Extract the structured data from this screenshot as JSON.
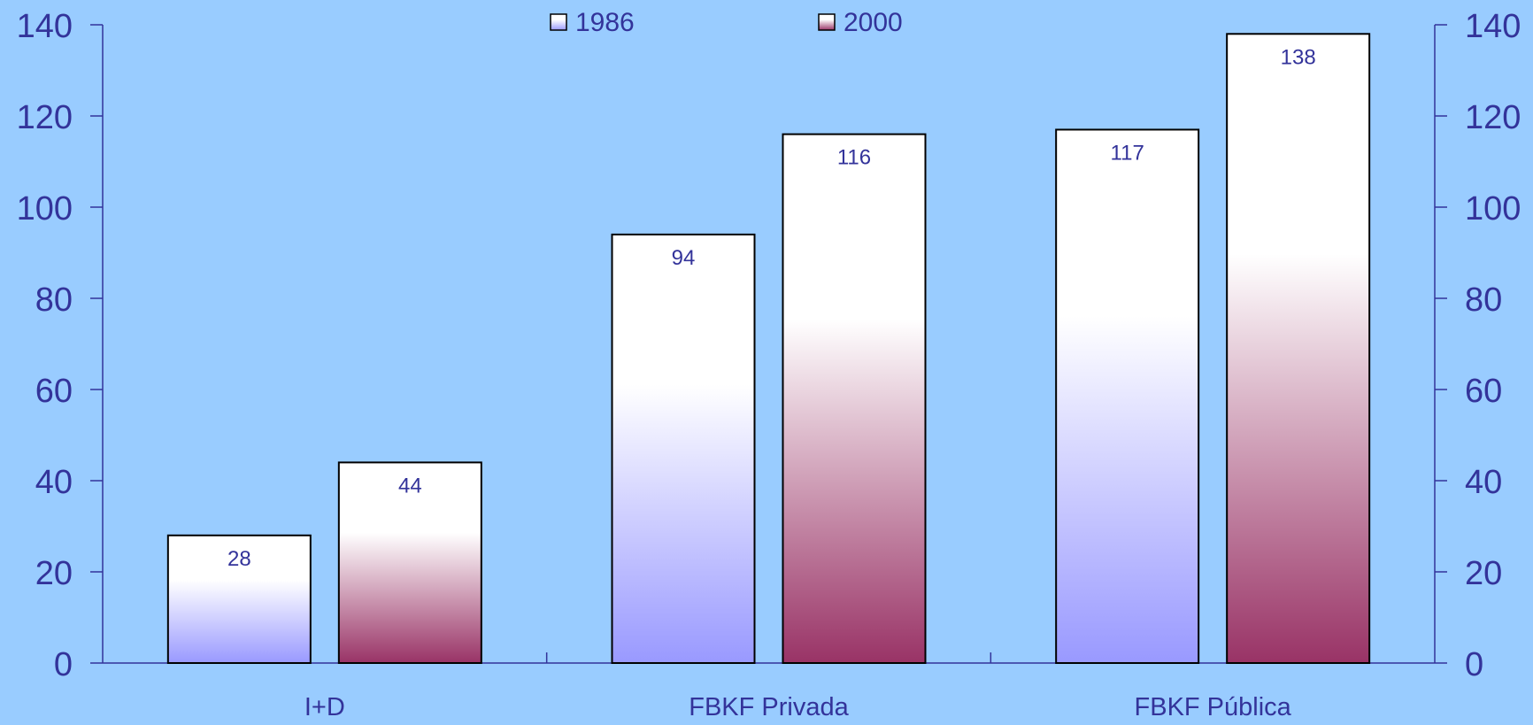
{
  "chart_data": {
    "type": "bar",
    "categories": [
      "I+D",
      "FBKF Privada",
      "FBKF Pública"
    ],
    "series": [
      {
        "name": "1986",
        "values": [
          28,
          94,
          117
        ]
      },
      {
        "name": "2000",
        "values": [
          44,
          116,
          138
        ]
      }
    ],
    "data_labels": [
      [
        "28",
        "94",
        "117"
      ],
      [
        "44",
        "116",
        "138"
      ]
    ],
    "ylim": [
      0,
      140
    ],
    "yticks": [
      0,
      20,
      40,
      60,
      80,
      100,
      120,
      140
    ],
    "secondary_yaxis": true,
    "grid": false,
    "legend_position": "top-center",
    "title": "",
    "xlabel": "",
    "ylabel": ""
  },
  "colors": {
    "background": "#99ccff",
    "axis_and_text": "#33339a",
    "series_1986_bottom": "#9999ff",
    "series_1986_top": "#ffffff",
    "series_2000_bottom": "#993366",
    "series_2000_top": "#ffffff",
    "bar_outline": "#000000"
  }
}
